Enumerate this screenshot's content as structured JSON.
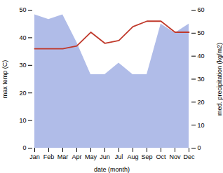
{
  "chart_data": {
    "type": "line",
    "xlabel": "date (month)",
    "ylabel": "max temp (C)",
    "y2label": "med. precipitation (kg/m2)",
    "categories": [
      "Jan",
      "Feb",
      "Mar",
      "Apr",
      "May",
      "Jun",
      "Jul",
      "Aug",
      "Sep",
      "Oct",
      "Nov",
      "Dec"
    ],
    "series": [
      {
        "type": "area",
        "axis": "y2",
        "color": "#b0bce8",
        "values": [
          58,
          56,
          58,
          46,
          32,
          32,
          37,
          32,
          32,
          54,
          50,
          54
        ]
      },
      {
        "type": "line",
        "color": "#c0392b",
        "values": [
          36,
          36,
          36,
          37,
          42,
          38,
          39,
          44,
          46,
          46,
          42,
          42
        ]
      }
    ],
    "ylim": [
      0,
      50
    ],
    "yticks": [
      0,
      10,
      20,
      30,
      40,
      50
    ],
    "y2lim": [
      0,
      60
    ],
    "y2ticks": [
      0,
      10,
      20,
      30,
      40,
      50,
      60
    ],
    "grid": false
  }
}
